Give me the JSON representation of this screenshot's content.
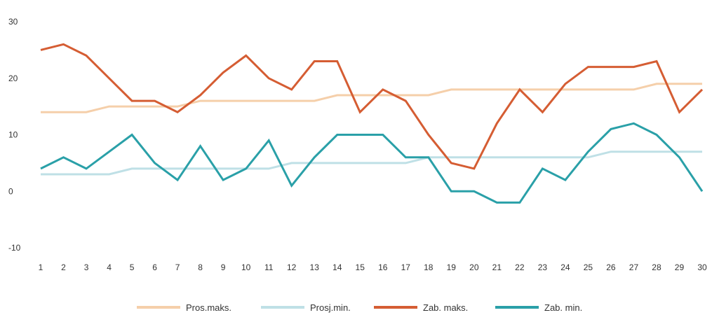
{
  "chart_data": {
    "type": "line",
    "title": "",
    "xlabel": "",
    "ylabel": "",
    "x": [
      1,
      2,
      3,
      4,
      5,
      6,
      7,
      8,
      9,
      10,
      11,
      12,
      13,
      14,
      15,
      16,
      17,
      18,
      19,
      20,
      21,
      22,
      23,
      24,
      25,
      26,
      27,
      28,
      29,
      30
    ],
    "x_tick_labels": [
      "1",
      "2",
      "3",
      "4",
      "5",
      "6",
      "7",
      "8",
      "9",
      "10",
      "11",
      "12",
      "13",
      "14",
      "15",
      "16",
      "17",
      "18",
      "19",
      "20",
      "21",
      "22",
      "23",
      "24",
      "25",
      "26",
      "27",
      "28",
      "29",
      "30"
    ],
    "ylim": [
      -10,
      30
    ],
    "y_ticks": [
      -10,
      0,
      10,
      20,
      30
    ],
    "y_tick_labels": [
      "-10",
      "0",
      "10",
      "20",
      "30"
    ],
    "grid": false,
    "legend_position": "bottom-center",
    "series": [
      {
        "name": "Pros.maks.",
        "color": "#f5cfaa",
        "values": [
          14,
          14,
          14,
          15,
          15,
          15,
          15,
          16,
          16,
          16,
          16,
          16,
          16,
          17,
          17,
          17,
          17,
          17,
          18,
          18,
          18,
          18,
          18,
          18,
          18,
          18,
          18,
          19,
          19,
          19
        ]
      },
      {
        "name": "Prosj.min.",
        "color": "#bfe0e6",
        "values": [
          3,
          3,
          3,
          3,
          4,
          4,
          4,
          4,
          4,
          4,
          4,
          5,
          5,
          5,
          5,
          5,
          5,
          6,
          6,
          6,
          6,
          6,
          6,
          6,
          6,
          7,
          7,
          7,
          7,
          7
        ]
      },
      {
        "name": "Zab. maks.",
        "color": "#d55d33",
        "values": [
          25,
          26,
          24,
          20,
          16,
          16,
          14,
          17,
          21,
          24,
          20,
          18,
          23,
          23,
          14,
          18,
          16,
          10,
          5,
          4,
          12,
          18,
          14,
          19,
          22,
          22,
          22,
          23,
          14,
          18
        ]
      },
      {
        "name": "Zab. min.",
        "color": "#2aa0a8",
        "values": [
          4,
          6,
          4,
          7,
          10,
          5,
          2,
          8,
          2,
          4,
          9,
          1,
          6,
          10,
          10,
          10,
          6,
          6,
          0,
          0,
          -2,
          -2,
          4,
          2,
          7,
          11,
          12,
          10,
          6,
          0
        ]
      }
    ]
  }
}
